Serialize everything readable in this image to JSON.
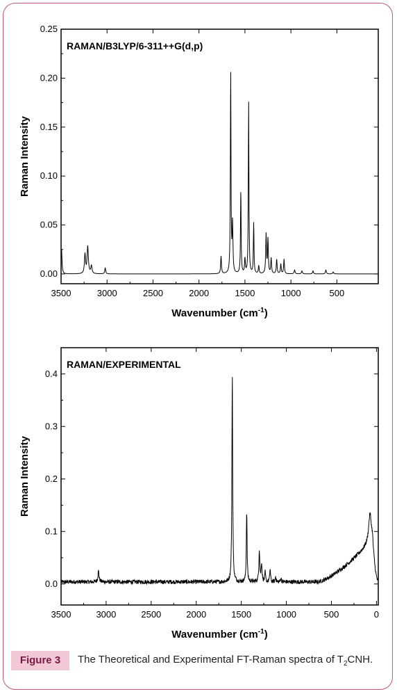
{
  "chart_data": [
    {
      "type": "line",
      "panel": "top",
      "title": "RAMAN/B3LYP/6-311++G(d,p)",
      "xlabel_main": "Wavenumber (cm",
      "xlabel_sup": "-1",
      "xlabel_end": ")",
      "ylabel": "Raman Intensity",
      "xlim": [
        3500,
        50
      ],
      "ylim": [
        -0.01,
        0.25
      ],
      "x_ticks": [
        3500,
        3000,
        2500,
        2000,
        1500,
        1000,
        500
      ],
      "x_tick_labels": [
        "3500",
        "3000",
        "2500",
        "2000",
        "1500",
        "1000",
        "500"
      ],
      "y_ticks": [
        0.0,
        0.05,
        0.1,
        0.15,
        0.2,
        0.25
      ],
      "y_tick_labels": [
        "0.00",
        "0.05",
        "0.10",
        "0.15",
        "0.20",
        "0.25"
      ],
      "baseline": 0.0,
      "peaks": [
        {
          "x": 3495,
          "y": 0.025,
          "w": 6
        },
        {
          "x": 3240,
          "y": 0.02,
          "w": 7
        },
        {
          "x": 3210,
          "y": 0.028,
          "w": 8
        },
        {
          "x": 3170,
          "y": 0.008,
          "w": 8
        },
        {
          "x": 3020,
          "y": 0.006,
          "w": 6
        },
        {
          "x": 1760,
          "y": 0.018,
          "w": 5
        },
        {
          "x": 1655,
          "y": 0.21,
          "w": 4
        },
        {
          "x": 1635,
          "y": 0.05,
          "w": 5
        },
        {
          "x": 1545,
          "y": 0.086,
          "w": 4
        },
        {
          "x": 1500,
          "y": 0.015,
          "w": 5
        },
        {
          "x": 1460,
          "y": 0.177,
          "w": 4
        },
        {
          "x": 1405,
          "y": 0.052,
          "w": 4
        },
        {
          "x": 1350,
          "y": 0.008,
          "w": 5
        },
        {
          "x": 1270,
          "y": 0.04,
          "w": 5
        },
        {
          "x": 1250,
          "y": 0.035,
          "w": 5
        },
        {
          "x": 1215,
          "y": 0.016,
          "w": 5
        },
        {
          "x": 1155,
          "y": 0.015,
          "w": 5
        },
        {
          "x": 1110,
          "y": 0.01,
          "w": 5
        },
        {
          "x": 1075,
          "y": 0.015,
          "w": 5
        },
        {
          "x": 960,
          "y": 0.004,
          "w": 6
        },
        {
          "x": 880,
          "y": 0.003,
          "w": 6
        },
        {
          "x": 760,
          "y": 0.003,
          "w": 6
        },
        {
          "x": 620,
          "y": 0.004,
          "w": 6
        },
        {
          "x": 540,
          "y": 0.002,
          "w": 6
        }
      ]
    },
    {
      "type": "line",
      "panel": "bottom",
      "title": "RAMAN/EXPERIMENTAL",
      "xlabel_main": "Wavenumber (cm",
      "xlabel_sup": "-1",
      "xlabel_end": ")",
      "ylabel": "Raman Intensity",
      "xlim": [
        3500,
        -20
      ],
      "ylim": [
        -0.04,
        0.45
      ],
      "x_ticks": [
        3500,
        3000,
        2500,
        2000,
        1500,
        1000,
        500,
        0
      ],
      "x_tick_labels": [
        "3500",
        "3000",
        "2500",
        "2000",
        "1500",
        "1000",
        "500",
        "0"
      ],
      "y_ticks": [
        0.0,
        0.1,
        0.2,
        0.3,
        0.4
      ],
      "y_tick_labels": [
        "0.0",
        "0.1",
        "0.2",
        "0.3",
        "0.4"
      ],
      "baseline": 0.004,
      "noise": 0.004,
      "peaks": [
        {
          "x": 3085,
          "y": 0.02,
          "w": 8
        },
        {
          "x": 1600,
          "y": 0.4,
          "w": 5
        },
        {
          "x": 1440,
          "y": 0.135,
          "w": 5
        },
        {
          "x": 1300,
          "y": 0.06,
          "w": 6
        },
        {
          "x": 1275,
          "y": 0.035,
          "w": 6
        },
        {
          "x": 1235,
          "y": 0.018,
          "w": 5
        },
        {
          "x": 1180,
          "y": 0.025,
          "w": 5
        },
        {
          "x": 1120,
          "y": 0.01,
          "w": 5
        },
        {
          "x": 1060,
          "y": 0.008,
          "w": 5
        },
        {
          "x": 72,
          "y": 0.055,
          "w": 18
        }
      ],
      "rise": {
        "start": 650,
        "end": 45,
        "top": 0.08,
        "drop_to": 0.0
      }
    }
  ],
  "caption": {
    "badge": "Figure 3",
    "text": "The Theoretical and Experimental FT-Raman spectra of T",
    "sub": "2",
    "end": "CNH."
  },
  "colors": {
    "frame": "#c0577a",
    "badge_bg": "#f2c7d6",
    "badge_text": "#7a1845",
    "line": "#000000"
  }
}
